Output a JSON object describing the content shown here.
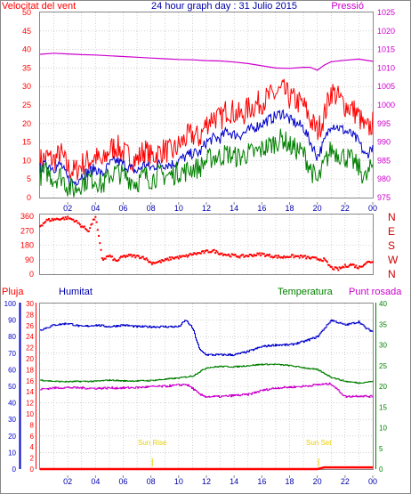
{
  "title": "24 hour graph day : 31 Julio 2015",
  "colors": {
    "wind_speed": "#ff0000",
    "wind_gust": "#ff0000",
    "wind_avg": "#0000cc",
    "wind_green": "#008000",
    "pressure": "#cc00cc",
    "direction": "#ff0000",
    "humidity": "#0000cc",
    "temperature": "#008000",
    "dewpoint": "#cc00cc",
    "rain": "#ff0000",
    "sun": "#e8d000",
    "grid": "#b4b4b4"
  },
  "time_ticks": [
    "02",
    "04",
    "06",
    "08",
    "10",
    "12",
    "14",
    "16",
    "18",
    "20",
    "22",
    "00"
  ],
  "chart_data": [
    {
      "type": "line",
      "title": "",
      "left_label": "Velocitat del vent",
      "right_label": "Pressió",
      "x_unit": "hour (0 = 00:00, 24 = 24:00)",
      "xlim": [
        0,
        24
      ],
      "y_left_ticks": [
        "0",
        "5",
        "10",
        "15",
        "20",
        "25",
        "30",
        "35",
        "40",
        "45",
        "50"
      ],
      "ylim_left": [
        0,
        50
      ],
      "y_right_ticks": [
        "975",
        "980",
        "985",
        "990",
        "995",
        "1000",
        "1005",
        "1010",
        "1015",
        "1020",
        "1025"
      ],
      "ylim_right": [
        975,
        1025
      ],
      "series": [
        {
          "key": "wind_max",
          "axis": "left",
          "color": "wind_gust",
          "x": [
            0,
            0.5,
            1,
            1.5,
            2,
            2.5,
            3,
            3.5,
            4,
            4.5,
            5,
            5.5,
            6,
            6.5,
            7,
            7.5,
            8,
            8.5,
            9,
            9.5,
            10,
            10.5,
            11,
            11.5,
            12,
            12.5,
            13,
            13.5,
            14,
            14.5,
            15,
            15.5,
            16,
            16.5,
            17,
            17.5,
            18,
            18.5,
            19,
            19.5,
            20,
            20.5,
            21,
            21.5,
            22,
            22.5,
            23,
            23.5,
            24
          ],
          "y": [
            10,
            11,
            10,
            12,
            8,
            7,
            9,
            10,
            11,
            9,
            13,
            14,
            12,
            11,
            10,
            13,
            11,
            12,
            13,
            12,
            14,
            16,
            17,
            16,
            20,
            22,
            21,
            24,
            23,
            22,
            24,
            25,
            26,
            27,
            28,
            29,
            27,
            26,
            25,
            21,
            18,
            22,
            29,
            27,
            25,
            24,
            22,
            18,
            20
          ]
        },
        {
          "key": "wind_avg",
          "axis": "left",
          "color": "wind_avg",
          "x": [
            0,
            0.5,
            1,
            1.5,
            2,
            2.5,
            3,
            3.5,
            4,
            4.5,
            5,
            5.5,
            6,
            6.5,
            7,
            7.5,
            8,
            8.5,
            9,
            9.5,
            10,
            10.5,
            11,
            11.5,
            12,
            12.5,
            13,
            13.5,
            14,
            14.5,
            15,
            15.5,
            16,
            16.5,
            17,
            17.5,
            18,
            18.5,
            19,
            19.5,
            20,
            20.5,
            21,
            21.5,
            22,
            22.5,
            23,
            23.5,
            24
          ],
          "y": [
            8,
            9,
            8,
            9,
            5,
            4,
            6,
            7,
            8,
            6,
            9,
            10,
            9,
            8,
            7,
            9,
            8,
            9,
            9,
            9,
            10,
            11,
            12,
            12,
            15,
            16,
            16,
            18,
            17,
            17,
            18,
            19,
            20,
            21,
            22,
            23,
            21,
            20,
            19,
            15,
            11,
            15,
            20,
            19,
            18,
            17,
            15,
            11,
            14
          ]
        },
        {
          "key": "wind_green",
          "axis": "left",
          "color": "wind_green",
          "x": [
            0,
            0.5,
            1,
            1.5,
            2,
            2.5,
            3,
            3.5,
            4,
            4.5,
            5,
            5.5,
            6,
            6.5,
            7,
            7.5,
            8,
            8.5,
            9,
            9.5,
            10,
            10.5,
            11,
            11.5,
            12,
            12.5,
            13,
            13.5,
            14,
            14.5,
            15,
            15.5,
            16,
            16.5,
            17,
            17.5,
            18,
            18.5,
            19,
            19.5,
            20,
            20.5,
            21,
            21.5,
            22,
            22.5,
            23,
            23.5,
            24
          ],
          "y": [
            6,
            7,
            5,
            6,
            3,
            2,
            4,
            5,
            5,
            3,
            6,
            7,
            6,
            5,
            4,
            6,
            5,
            6,
            6,
            6,
            7,
            7,
            8,
            8,
            10,
            11,
            11,
            12,
            11,
            11,
            12,
            12,
            13,
            14,
            15,
            16,
            14,
            13,
            12,
            8,
            4,
            9,
            13,
            12,
            11,
            10,
            8,
            5,
            9
          ]
        },
        {
          "key": "pressure",
          "axis": "right",
          "color": "pressure",
          "x": [
            0,
            1,
            2,
            3,
            4,
            5,
            6,
            7,
            8,
            9,
            10,
            11,
            12,
            13,
            14,
            15,
            16,
            17,
            18,
            19,
            19.5,
            20,
            20.5,
            21,
            22,
            23,
            24
          ],
          "y": [
            1013.7,
            1014,
            1013.8,
            1013.6,
            1013.5,
            1013.3,
            1013.1,
            1012.9,
            1012.7,
            1012.5,
            1012.3,
            1012.2,
            1012,
            1011.9,
            1011.6,
            1011.2,
            1010.6,
            1010,
            1009.9,
            1010.2,
            1010.2,
            1009.4,
            1010.8,
            1011.7,
            1012.1,
            1012.4,
            1011.8
          ]
        }
      ]
    },
    {
      "type": "scatter",
      "title": "",
      "x_unit": "hour (0 = 00:00, 24 = 24:00)",
      "xlim": [
        0,
        24
      ],
      "y_left_ticks": [
        "0",
        "90",
        "180",
        "270",
        "360"
      ],
      "ylim": [
        0,
        360
      ],
      "y_right_labels": [
        "N",
        "W",
        "S",
        "E",
        "N"
      ],
      "series": [
        {
          "key": "wind_direction",
          "color": "direction",
          "x": [
            0,
            0.5,
            1,
            1.5,
            2,
            2.5,
            3,
            3.5,
            4,
            4.5,
            5,
            5.5,
            6,
            6.5,
            7,
            7.5,
            8,
            8.5,
            9,
            9.5,
            10,
            10.5,
            11,
            11.5,
            12,
            12.5,
            13,
            13.5,
            14,
            14.5,
            15,
            15.5,
            16,
            16.5,
            17,
            17.5,
            18,
            18.5,
            19,
            19.5,
            20,
            20.5,
            21,
            21.5,
            22,
            22.5,
            23,
            23.5,
            24
          ],
          "y": [
            300,
            335,
            340,
            345,
            350,
            335,
            300,
            270,
            360,
            90,
            115,
            80,
            110,
            115,
            110,
            105,
            70,
            75,
            85,
            100,
            105,
            110,
            125,
            130,
            140,
            145,
            130,
            120,
            115,
            110,
            115,
            120,
            125,
            115,
            110,
            105,
            112,
            110,
            108,
            100,
            95,
            90,
            40,
            30,
            50,
            60,
            40,
            70,
            80
          ]
        }
      ]
    },
    {
      "type": "line",
      "title": "",
      "labels": [
        "Pluja",
        "Humitat",
        "Temperatura",
        "Punt rosada"
      ],
      "annotations": [
        "Sun Rise",
        "Sun Set"
      ],
      "annotation_hours": [
        8.1,
        20.1
      ],
      "x_unit": "hour (0 = 00:00, 24 = 24:00)",
      "xlim": [
        0,
        24
      ],
      "y_humidity_ticks": [
        "0",
        "10",
        "20",
        "30",
        "40",
        "50",
        "60",
        "70",
        "80",
        "90",
        "100"
      ],
      "ylim_humidity": [
        0,
        100
      ],
      "y_rain_ticks": [
        "0",
        "2",
        "4",
        "6",
        "8",
        "10",
        "12",
        "14",
        "16",
        "18",
        "20",
        "22",
        "24",
        "26",
        "28",
        "30"
      ],
      "ylim_rain": [
        0,
        30
      ],
      "y_temp_ticks": [
        "0",
        "5",
        "10",
        "15",
        "20",
        "25",
        "30",
        "35",
        "40"
      ],
      "ylim_temp": [
        0,
        40
      ],
      "series": [
        {
          "key": "humidity",
          "axis": "humidity",
          "color": "humidity",
          "x": [
            0,
            1,
            2,
            3,
            4,
            5,
            6,
            7,
            8,
            9,
            10,
            10.5,
            11,
            11.5,
            12,
            13,
            14,
            15,
            16,
            17,
            18,
            19,
            20,
            21,
            22,
            23,
            23.5,
            24
          ],
          "y": [
            84,
            87,
            88,
            86,
            87,
            86,
            87,
            86,
            86,
            86,
            86,
            90,
            85,
            72,
            69,
            69,
            69,
            71,
            74,
            75,
            75,
            77,
            80,
            90,
            87,
            89,
            85,
            83
          ]
        },
        {
          "key": "temperature",
          "axis": "temp",
          "color": "temperature",
          "x": [
            0,
            1,
            2,
            3,
            4,
            5,
            6,
            7,
            8,
            9,
            10,
            11,
            12,
            13,
            14,
            15,
            16,
            17,
            18,
            19,
            20,
            21,
            22,
            23,
            24
          ],
          "y": [
            21.5,
            21.2,
            21.1,
            21.2,
            21.2,
            21.5,
            21.3,
            21.3,
            21.4,
            21.7,
            22,
            22.5,
            24.5,
            24.8,
            24.7,
            25,
            25.3,
            25.3,
            25,
            24.5,
            24,
            22.2,
            21.2,
            20.8,
            21.2
          ]
        },
        {
          "key": "dewpoint",
          "axis": "temp",
          "color": "dewpoint",
          "x": [
            0,
            1,
            2,
            3,
            4,
            5,
            6,
            7,
            8,
            9,
            10,
            10.5,
            11,
            11.5,
            12,
            13,
            14,
            15,
            16,
            17,
            18,
            19,
            20,
            21,
            21.5,
            22,
            23,
            24
          ],
          "y": [
            19.3,
            19.6,
            19.7,
            19.6,
            19.5,
            19.6,
            19.6,
            19.7,
            19.9,
            20,
            20.3,
            20.5,
            19.5,
            18,
            17.5,
            17.5,
            17.8,
            18,
            19,
            19.6,
            19.8,
            20,
            20.4,
            20.6,
            19,
            17.5,
            17.7,
            17.5
          ]
        },
        {
          "key": "rain",
          "axis": "rain",
          "color": "rain",
          "x": [
            0,
            20,
            20.5,
            24
          ],
          "y": [
            0,
            0,
            0.3,
            0.3
          ]
        }
      ]
    }
  ]
}
